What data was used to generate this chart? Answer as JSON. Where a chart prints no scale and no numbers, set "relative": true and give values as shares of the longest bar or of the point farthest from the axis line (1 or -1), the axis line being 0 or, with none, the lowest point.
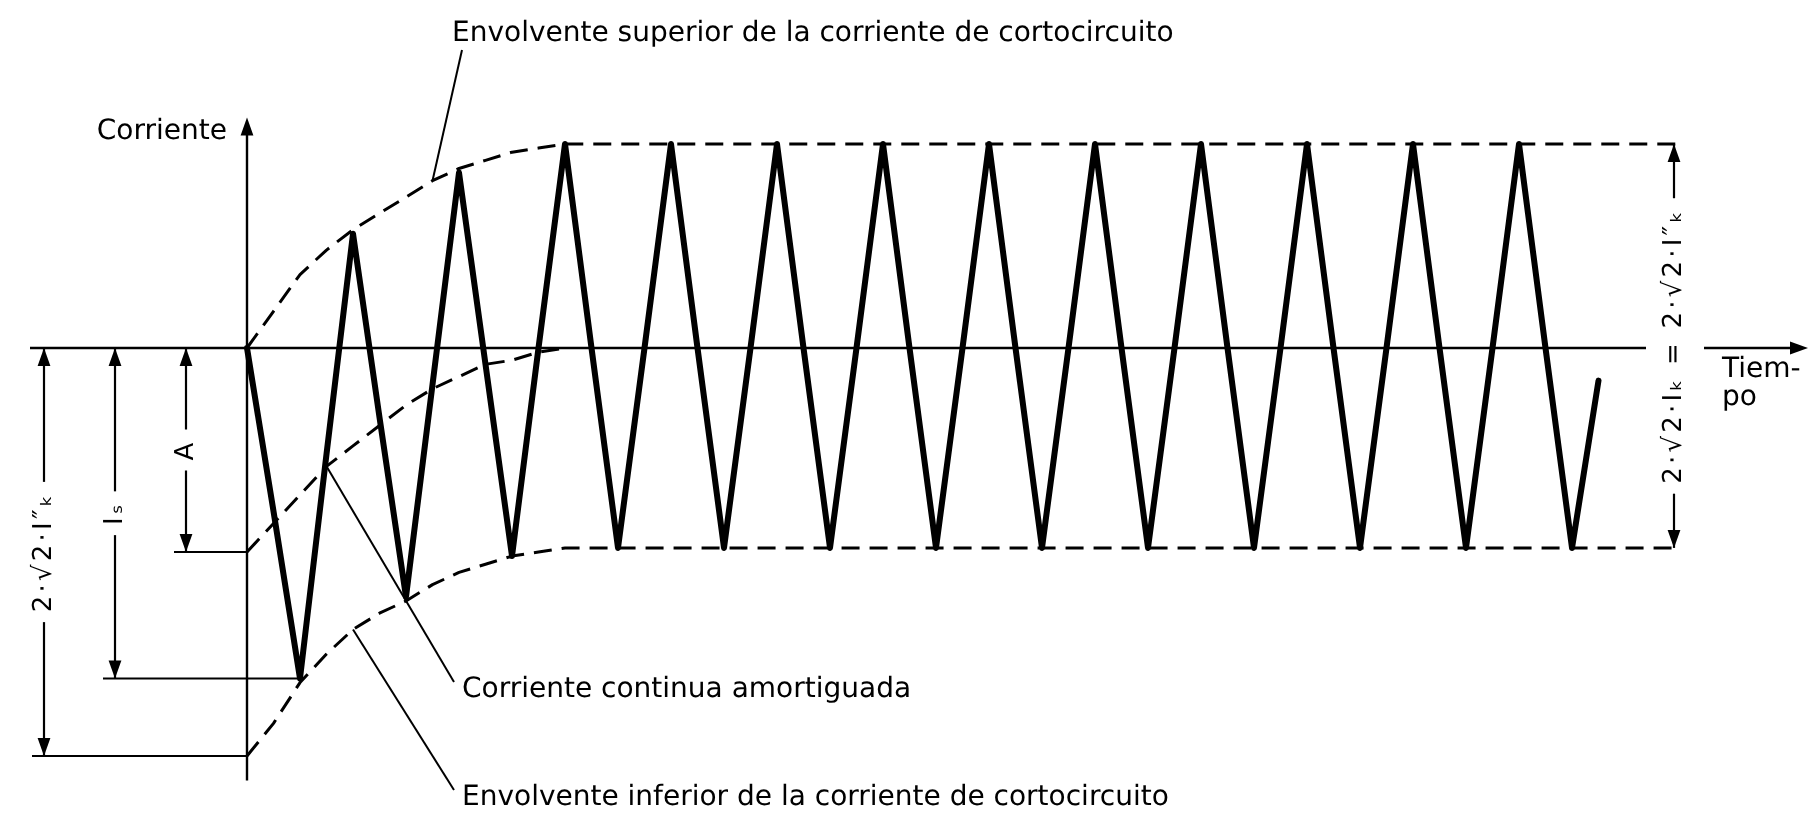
{
  "chart_data": {
    "type": "line",
    "relative": true,
    "ylabel": "Corriente",
    "xlabel": "Tiem-po",
    "legend": false,
    "categories": [
      null,
      null,
      null,
      null,
      null,
      null,
      null,
      null,
      null,
      null,
      null,
      null,
      null,
      null,
      null,
      null,
      null,
      null,
      null,
      null,
      null,
      null,
      null,
      null,
      null,
      null,
      null,
      null,
      null,
      null,
      null,
      null,
      null,
      null,
      null,
      null,
      null,
      null,
      null,
      null,
      null,
      null,
      null,
      null,
      null,
      null,
      null,
      null,
      null,
      null,
      null,
      null,
      null,
      null,
      null
    ],
    "series": [
      {
        "name": "Envolvente superior de la corriente de cortocircuito",
        "color": "#000000",
        "line_style": "dashed",
        "values": [
          0,
          0.09,
          0.18,
          0.24,
          0.29,
          0.33,
          0.37,
          0.41,
          0.44,
          0.46,
          0.48,
          0.49,
          0.5,
          0.5,
          0.5,
          0.5,
          0.5,
          0.5,
          0.5,
          0.5,
          0.5,
          0.5,
          0.5,
          0.5,
          0.5,
          0.5,
          0.5,
          0.5,
          0.5,
          0.5,
          0.5,
          0.5,
          0.5,
          0.5,
          0.5,
          0.5,
          0.5,
          0.5,
          0.5,
          0.5,
          0.5,
          0.5,
          0.5,
          0.5,
          0.5,
          0.5,
          0.5,
          0.5,
          0.5,
          0.5,
          0.5,
          0.5,
          0.5,
          0.5,
          0.5
        ]
      },
      {
        "name": "Corriente continua amortiguada",
        "color": "#000000",
        "line_style": "dashed",
        "values": [
          -0.5,
          -0.43,
          -0.36,
          -0.29,
          -0.24,
          -0.19,
          -0.14,
          -0.1,
          -0.07,
          -0.04,
          -0.03,
          -0.01,
          0,
          null,
          null,
          null,
          null,
          null,
          null,
          null,
          null,
          null,
          null,
          null,
          null,
          null,
          null,
          null,
          null,
          null,
          null,
          null,
          null,
          null,
          null,
          null,
          null,
          null,
          null,
          null,
          null,
          null,
          null,
          null,
          null,
          null,
          null,
          null,
          null,
          null,
          null,
          null,
          null,
          null,
          null
        ]
      },
      {
        "name": "Envolvente inferior de la corriente de cortocircuito",
        "color": "#000000",
        "line_style": "dashed",
        "values": [
          -1,
          -0.92,
          -0.82,
          -0.75,
          -0.69,
          -0.65,
          -0.62,
          -0.58,
          -0.55,
          -0.53,
          -0.51,
          -0.5,
          -0.49,
          -0.49,
          -0.49,
          -0.49,
          -0.49,
          -0.49,
          -0.49,
          -0.49,
          -0.49,
          -0.49,
          -0.49,
          -0.49,
          -0.49,
          -0.49,
          -0.49,
          -0.49,
          -0.49,
          -0.49,
          -0.49,
          -0.49,
          -0.49,
          -0.49,
          -0.49,
          -0.49,
          -0.49,
          -0.49,
          -0.49,
          -0.49,
          -0.49,
          -0.49,
          -0.49,
          -0.49,
          -0.49,
          -0.49,
          -0.49,
          -0.49,
          -0.49,
          -0.49,
          -0.49,
          -0.49,
          -0.49,
          -0.49,
          -0.49
        ]
      },
      {
        "color": "#000000",
        "line_style": "solid",
        "values": [
          0,
          -0.4,
          -0.81,
          -0.26,
          0.28,
          -0.17,
          -0.61,
          -0.09,
          0.43,
          -0.04,
          -0.51,
          0,
          0.5,
          0,
          -0.49,
          0,
          0.5,
          0,
          -0.49,
          0,
          0.5,
          0,
          -0.49,
          0,
          0.5,
          0,
          -0.49,
          0,
          0.5,
          0,
          -0.49,
          0,
          0.5,
          0,
          -0.49,
          0,
          0.5,
          0,
          -0.49,
          0,
          0.5,
          0,
          -0.49,
          0,
          0.5,
          0,
          -0.49,
          0,
          0.5,
          0,
          -0.49,
          -0.08,
          null,
          null,
          null
        ]
      }
    ],
    "annotations": [
      "A",
      "Iₛ",
      "2·√2·I″ₖ",
      "2·√2·Iₖ = 2·√2·I″ₖ"
    ]
  }
}
